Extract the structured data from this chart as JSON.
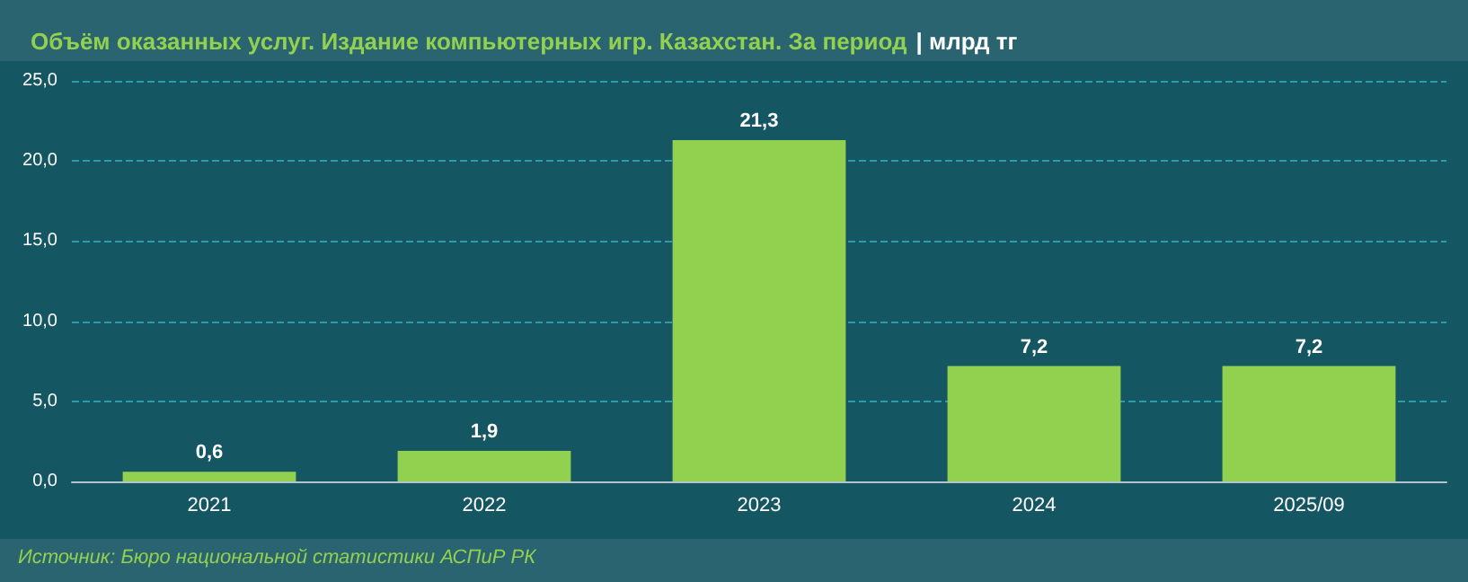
{
  "chart_data": {
    "type": "bar",
    "title": "Объём оказанных услуг. Издание компьютерных игр. Казахстан. За период",
    "subtitle": "| млрд тг",
    "categories": [
      "2021",
      "2022",
      "2023",
      "2024",
      "2025/09"
    ],
    "values": [
      0.6,
      1.9,
      21.3,
      7.2,
      7.2
    ],
    "color": "#92d050",
    "value_labels": [
      "0,6",
      "1,9",
      "21,3",
      "7,2",
      "7,2"
    ],
    "ylim": [
      0,
      25
    ],
    "yticks": [
      {
        "value": 0,
        "label": "0,0"
      },
      {
        "value": 5,
        "label": "5,0"
      },
      {
        "value": 10,
        "label": "10,0"
      },
      {
        "value": 15,
        "label": "15,0"
      },
      {
        "value": 20,
        "label": "20,0"
      },
      {
        "value": 25,
        "label": "25,0"
      }
    ],
    "grid": "y",
    "annotations": [
      "Источник: Бюро национальной статистики АСПиР РК"
    ]
  }
}
